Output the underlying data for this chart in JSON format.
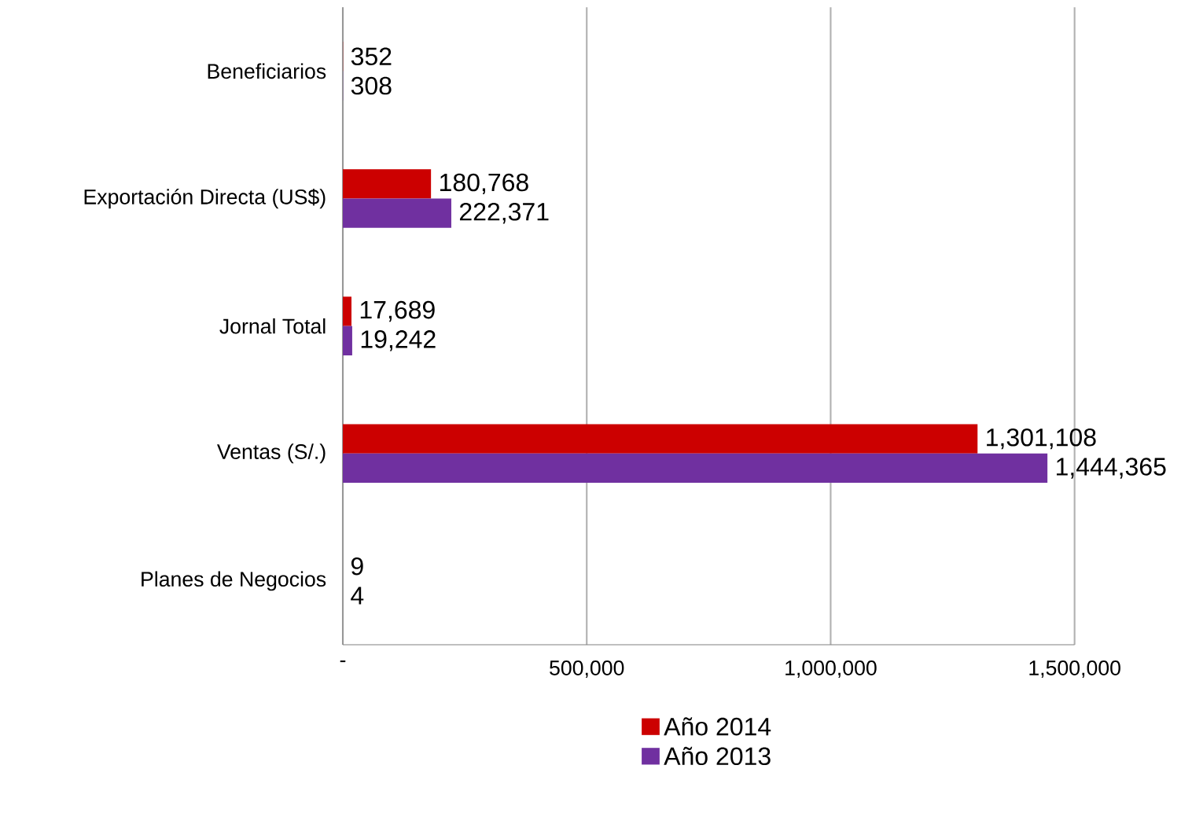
{
  "chart_data": {
    "type": "bar",
    "orientation": "horizontal",
    "categories": [
      "Beneficiarios",
      "Exportación Directa (US$)",
      "Jornal Total",
      "Ventas (S/.)",
      "Planes de Negocios"
    ],
    "series": [
      {
        "name": "Año 2014",
        "color": "#cc0000",
        "values": [
          352,
          180768,
          17689,
          1301108,
          9
        ],
        "value_labels": [
          "352",
          "180,768",
          "17,689",
          "1,301,108",
          "9"
        ]
      },
      {
        "name": "Año 2013",
        "color": "#7030a0",
        "values": [
          308,
          222371,
          19242,
          1444365,
          4
        ],
        "value_labels": [
          "308",
          "222,371",
          "19,242",
          "1,444,365",
          "4"
        ]
      }
    ],
    "xlim": [
      0,
      1500000
    ],
    "xticks": [
      {
        "value": 0,
        "label": "-"
      },
      {
        "value": 500000,
        "label": "500,000"
      },
      {
        "value": 1000000,
        "label": "1,000,000"
      },
      {
        "value": 1500000,
        "label": "1,500,000"
      }
    ],
    "grid": "x",
    "legend": "bottom"
  }
}
